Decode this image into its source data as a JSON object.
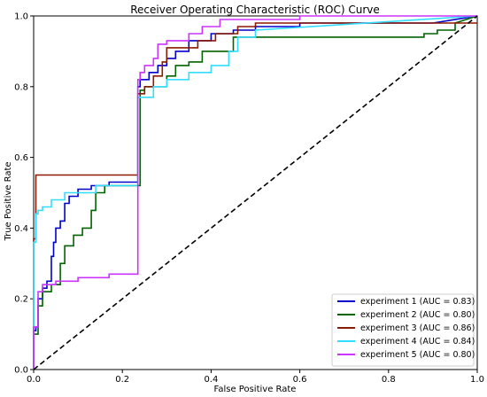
{
  "chart_data": {
    "type": "line",
    "title": "Receiver Operating Characteristic (ROC) Curve",
    "xlabel": "False Positive Rate",
    "ylabel": "True Positive Rate",
    "xlim": [
      0.0,
      1.0
    ],
    "ylim": [
      0.0,
      1.0
    ],
    "xticks": [
      "0.0",
      "0.2",
      "0.4",
      "0.6",
      "0.8",
      "1.0"
    ],
    "yticks": [
      "0.0",
      "0.2",
      "0.4",
      "0.6",
      "0.8",
      "1.0"
    ],
    "grid": false,
    "legend_position": "lower-right",
    "reference_line": {
      "x": [
        0,
        1
      ],
      "y": [
        0,
        1
      ],
      "style": "dashed",
      "color": "#000000"
    },
    "series": [
      {
        "name": "experiment 1 (AUC = 0.83)",
        "color": "#0000cc",
        "x": [
          0,
          0,
          0.005,
          0.005,
          0.01,
          0.01,
          0.02,
          0.02,
          0.03,
          0.03,
          0.04,
          0.04,
          0.045,
          0.045,
          0.05,
          0.05,
          0.06,
          0.06,
          0.07,
          0.07,
          0.08,
          0.08,
          0.1,
          0.1,
          0.13,
          0.13,
          0.17,
          0.17,
          0.235,
          0.235,
          0.24,
          0.24,
          0.26,
          0.26,
          0.28,
          0.28,
          0.3,
          0.3,
          0.32,
          0.32,
          0.35,
          0.35,
          0.4,
          0.4,
          0.45,
          0.45,
          0.5,
          0.5,
          0.6,
          0.6,
          0.9,
          1.0
        ],
        "y": [
          0,
          0.11,
          0.11,
          0.12,
          0.12,
          0.2,
          0.2,
          0.23,
          0.23,
          0.25,
          0.25,
          0.32,
          0.32,
          0.36,
          0.36,
          0.4,
          0.4,
          0.42,
          0.42,
          0.47,
          0.47,
          0.49,
          0.49,
          0.51,
          0.51,
          0.52,
          0.52,
          0.53,
          0.53,
          0.8,
          0.8,
          0.82,
          0.82,
          0.84,
          0.84,
          0.86,
          0.86,
          0.88,
          0.88,
          0.9,
          0.9,
          0.93,
          0.93,
          0.95,
          0.95,
          0.96,
          0.96,
          0.97,
          0.97,
          0.98,
          0.98,
          1.0
        ]
      },
      {
        "name": "experiment 2 (AUC = 0.80)",
        "color": "#006400",
        "x": [
          0,
          0,
          0.01,
          0.01,
          0.02,
          0.02,
          0.04,
          0.04,
          0.06,
          0.06,
          0.07,
          0.07,
          0.09,
          0.09,
          0.11,
          0.11,
          0.13,
          0.13,
          0.14,
          0.14,
          0.16,
          0.16,
          0.24,
          0.24,
          0.25,
          0.25,
          0.3,
          0.3,
          0.32,
          0.32,
          0.35,
          0.35,
          0.38,
          0.38,
          0.45,
          0.45,
          0.88,
          0.88,
          0.91,
          0.91,
          0.95,
          0.95,
          1.0
        ],
        "y": [
          0,
          0.1,
          0.1,
          0.18,
          0.18,
          0.22,
          0.22,
          0.24,
          0.24,
          0.3,
          0.3,
          0.35,
          0.35,
          0.38,
          0.38,
          0.4,
          0.4,
          0.45,
          0.45,
          0.5,
          0.5,
          0.52,
          0.52,
          0.79,
          0.79,
          0.8,
          0.8,
          0.83,
          0.83,
          0.86,
          0.86,
          0.87,
          0.87,
          0.9,
          0.9,
          0.94,
          0.94,
          0.95,
          0.95,
          0.96,
          0.96,
          0.98,
          1.0
        ]
      },
      {
        "name": "experiment 3 (AUC = 0.86)",
        "color": "#8b1a00",
        "x": [
          0,
          0,
          0.005,
          0.005,
          0.235,
          0.235,
          0.25,
          0.25,
          0.27,
          0.27,
          0.29,
          0.29,
          0.3,
          0.3,
          0.37,
          0.37,
          0.41,
          0.41,
          0.46,
          0.46,
          0.5,
          0.5,
          1.0
        ],
        "y": [
          0,
          0.37,
          0.37,
          0.55,
          0.55,
          0.78,
          0.78,
          0.8,
          0.8,
          0.83,
          0.83,
          0.87,
          0.87,
          0.91,
          0.91,
          0.93,
          0.93,
          0.95,
          0.95,
          0.97,
          0.97,
          0.98,
          0.98
        ]
      },
      {
        "name": "experiment 4 (AUC = 0.84)",
        "color": "#33ddff",
        "x": [
          0,
          0,
          0.005,
          0.005,
          0.01,
          0.01,
          0.02,
          0.02,
          0.04,
          0.04,
          0.07,
          0.07,
          0.14,
          0.14,
          0.235,
          0.235,
          0.27,
          0.27,
          0.3,
          0.3,
          0.35,
          0.35,
          0.4,
          0.4,
          0.44,
          0.44,
          0.46,
          0.46,
          0.5,
          0.5,
          1.0
        ],
        "y": [
          0,
          0.36,
          0.36,
          0.44,
          0.44,
          0.45,
          0.45,
          0.46,
          0.46,
          0.48,
          0.48,
          0.5,
          0.5,
          0.52,
          0.52,
          0.77,
          0.77,
          0.8,
          0.8,
          0.82,
          0.82,
          0.84,
          0.84,
          0.86,
          0.86,
          0.9,
          0.9,
          0.94,
          0.94,
          0.96,
          1.0
        ]
      },
      {
        "name": "experiment 5 (AUC = 0.80)",
        "color": "#cc33ff",
        "x": [
          0,
          0,
          0.01,
          0.01,
          0.02,
          0.02,
          0.05,
          0.05,
          0.1,
          0.1,
          0.17,
          0.17,
          0.235,
          0.235,
          0.24,
          0.24,
          0.25,
          0.25,
          0.27,
          0.27,
          0.28,
          0.28,
          0.3,
          0.3,
          0.35,
          0.35,
          0.38,
          0.38,
          0.42,
          0.42,
          0.6,
          0.6,
          1.0
        ],
        "y": [
          0,
          0.12,
          0.12,
          0.22,
          0.22,
          0.24,
          0.24,
          0.25,
          0.25,
          0.26,
          0.26,
          0.27,
          0.27,
          0.82,
          0.82,
          0.84,
          0.84,
          0.86,
          0.86,
          0.88,
          0.88,
          0.92,
          0.92,
          0.93,
          0.93,
          0.95,
          0.95,
          0.97,
          0.97,
          0.99,
          0.99,
          1.0,
          1.0
        ]
      }
    ]
  }
}
